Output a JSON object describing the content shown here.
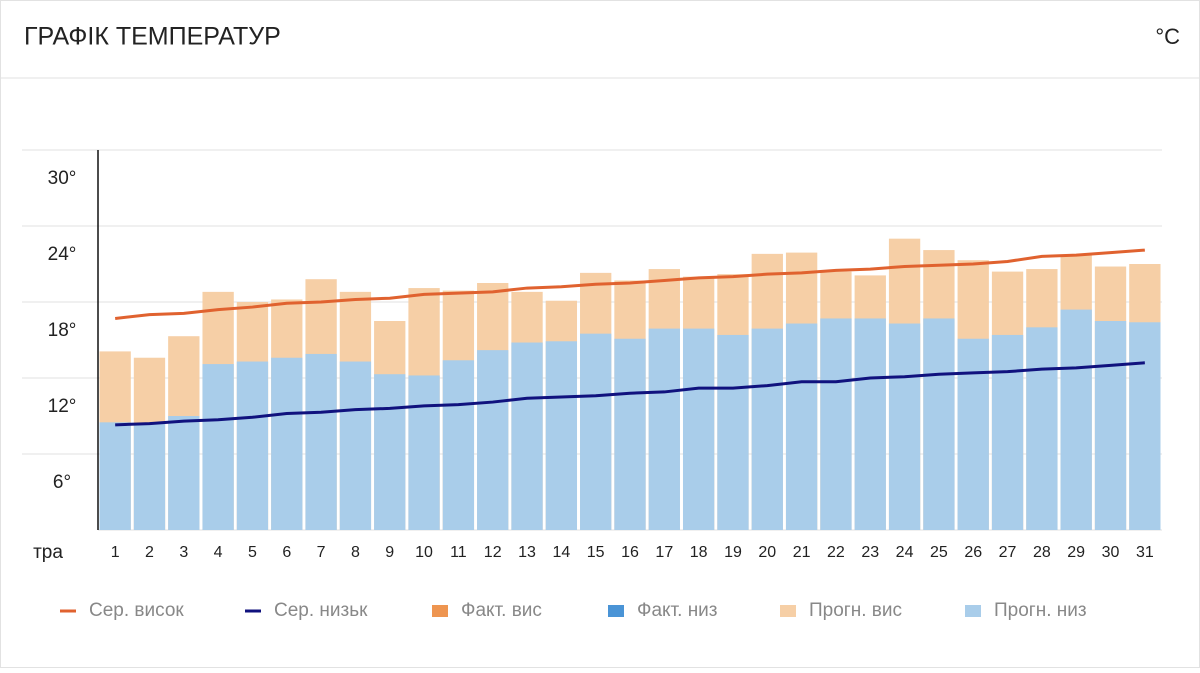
{
  "chart_data": {
    "type": "bar",
    "title": "ГРАФІК ТЕМПЕРАТУР",
    "unit": "°C",
    "x_label": "тра",
    "categories": [
      "1",
      "2",
      "3",
      "4",
      "5",
      "6",
      "7",
      "8",
      "9",
      "10",
      "11",
      "12",
      "13",
      "14",
      "15",
      "16",
      "17",
      "18",
      "19",
      "20",
      "21",
      "22",
      "23",
      "24",
      "25",
      "26",
      "27",
      "28",
      "29",
      "30",
      "31"
    ],
    "ylim": [
      0,
      30
    ],
    "yticks": [
      {
        "value": 6,
        "label": "6°"
      },
      {
        "value": 12,
        "label": "12°"
      },
      {
        "value": 18,
        "label": "18°"
      },
      {
        "value": 24,
        "label": "24°"
      },
      {
        "value": 30,
        "label": "30°"
      }
    ],
    "grid": true,
    "series": [
      {
        "name": "Сер. висок",
        "kind": "line",
        "color": "#e0622f",
        "values": [
          16.7,
          17.0,
          17.1,
          17.4,
          17.6,
          17.9,
          18.0,
          18.2,
          18.3,
          18.6,
          18.7,
          18.8,
          19.1,
          19.2,
          19.4,
          19.5,
          19.7,
          19.9,
          20.0,
          20.2,
          20.3,
          20.5,
          20.6,
          20.8,
          20.9,
          21.0,
          21.2,
          21.6,
          21.7,
          21.9,
          22.1
        ]
      },
      {
        "name": "Сер. низьк",
        "kind": "line",
        "color": "#10127e",
        "values": [
          8.3,
          8.4,
          8.6,
          8.7,
          8.9,
          9.2,
          9.3,
          9.5,
          9.6,
          9.8,
          9.9,
          10.1,
          10.4,
          10.5,
          10.6,
          10.8,
          10.9,
          11.2,
          11.2,
          11.4,
          11.7,
          11.7,
          12.0,
          12.1,
          12.3,
          12.4,
          12.5,
          12.7,
          12.8,
          13.0,
          13.2
        ]
      },
      {
        "name": "Факт. вис",
        "kind": "bar",
        "color": "#ee9550",
        "values": [
          null,
          null,
          null,
          null,
          null,
          null,
          null,
          null,
          null,
          null,
          null,
          null,
          null,
          null,
          null,
          null,
          null,
          null,
          null,
          null,
          null,
          null,
          null,
          null,
          null,
          null,
          null,
          null,
          null,
          null,
          null
        ]
      },
      {
        "name": "Факт. низ",
        "kind": "bar",
        "color": "#4a94d6",
        "values": [
          null,
          null,
          null,
          null,
          null,
          null,
          null,
          null,
          null,
          null,
          null,
          null,
          null,
          null,
          null,
          null,
          null,
          null,
          null,
          null,
          null,
          null,
          null,
          null,
          null,
          null,
          null,
          null,
          null,
          null,
          null
        ]
      },
      {
        "name": "Прогн. вис",
        "kind": "bar",
        "color": "#f6cfa6",
        "values": [
          14.1,
          13.6,
          15.3,
          18.8,
          18.0,
          18.2,
          19.8,
          18.8,
          16.5,
          19.1,
          18.9,
          19.5,
          18.8,
          18.1,
          20.3,
          19.7,
          20.6,
          20.0,
          20.2,
          21.8,
          21.9,
          20.4,
          20.1,
          23.0,
          22.1,
          21.3,
          20.4,
          20.6,
          21.7,
          20.8,
          21.0
        ]
      },
      {
        "name": "Прогн. низ",
        "kind": "bar",
        "color": "#a9cdea",
        "values": [
          8.5,
          8.4,
          9.0,
          13.1,
          13.3,
          13.6,
          13.9,
          13.3,
          12.3,
          12.2,
          13.4,
          14.2,
          14.8,
          14.9,
          15.5,
          15.1,
          15.9,
          15.9,
          15.4,
          15.9,
          16.3,
          16.7,
          16.7,
          16.3,
          16.7,
          15.1,
          15.4,
          16.0,
          17.4,
          16.5,
          16.4
        ]
      }
    ]
  }
}
